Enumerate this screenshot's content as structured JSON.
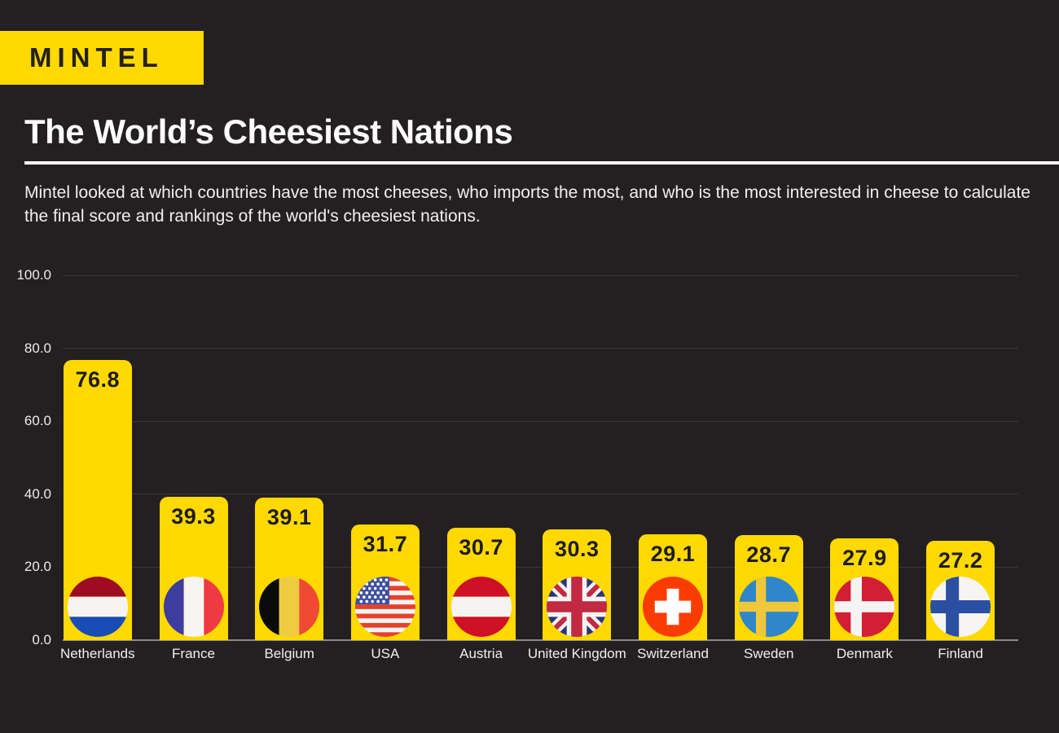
{
  "header": {
    "logo_text": "MINTEL",
    "title": "The World’s Cheesiest Nations",
    "subtitle": "Mintel looked at which countries have the most cheeses, who imports the most, and who is the most interested in cheese to calculate the final score and rankings of the world's cheesiest nations."
  },
  "colors": {
    "background": "#242021",
    "accent_yellow": "#FFD900",
    "title_text": "#FFFFFF",
    "body_text": "#F1EFEF",
    "gridline": "#3B3738",
    "baseline": "#8A8788",
    "bar_value_text": "#1F1B1C"
  },
  "chart_data": {
    "type": "bar",
    "title": "The World’s Cheesiest Nations",
    "categories": [
      "Netherlands",
      "France",
      "Belgium",
      "USA",
      "Austria",
      "United Kingdom",
      "Switzerland",
      "Sweden",
      "Denmark",
      "Finland"
    ],
    "values": [
      76.8,
      39.3,
      39.1,
      31.7,
      30.7,
      30.3,
      29.1,
      28.7,
      27.9,
      27.2
    ],
    "flags": [
      "nl",
      "fr",
      "be",
      "us",
      "at",
      "gb",
      "ch",
      "se",
      "dk",
      "fi"
    ],
    "bar_color": "#FFD900",
    "ylim": [
      0,
      100
    ],
    "yticks": [
      100,
      80,
      60,
      40,
      20,
      0
    ],
    "ytick_labels": [
      "100.0",
      "80.0",
      "60.0",
      "40.0",
      "20.0",
      "0.0"
    ],
    "grid": true,
    "legend_position": "none",
    "xlabel": "",
    "ylabel": ""
  }
}
